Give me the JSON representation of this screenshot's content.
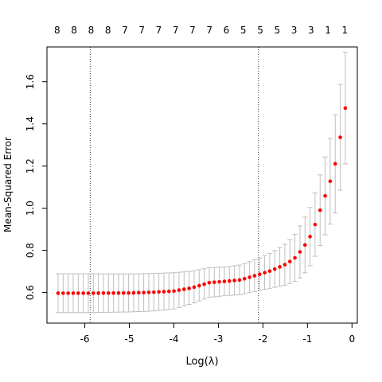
{
  "chart_data": {
    "type": "scatter",
    "xlabel": "Log(λ)",
    "ylabel": "Mean-Squared Error",
    "xlim": [
      -6.85,
      0.12
    ],
    "ylim": [
      0.455,
      1.765
    ],
    "xticks": [
      -6,
      -5,
      -4,
      -3,
      -2,
      -1,
      0
    ],
    "yticks": [
      0.6,
      0.8,
      1.0,
      1.2,
      1.4,
      1.6
    ],
    "ytick_labels": [
      "0.6",
      "0.8",
      "1.0",
      "1.2",
      "1.4",
      "1.6"
    ],
    "top_axis_labels": [
      {
        "x": -6.62,
        "label": "8"
      },
      {
        "x": -6.24,
        "label": "8"
      },
      {
        "x": -5.86,
        "label": "8"
      },
      {
        "x": -5.48,
        "label": "8"
      },
      {
        "x": -5.1,
        "label": "7"
      },
      {
        "x": -4.72,
        "label": "7"
      },
      {
        "x": -4.34,
        "label": "7"
      },
      {
        "x": -3.96,
        "label": "7"
      },
      {
        "x": -3.58,
        "label": "7"
      },
      {
        "x": -3.2,
        "label": "7"
      },
      {
        "x": -2.82,
        "label": "6"
      },
      {
        "x": -2.44,
        "label": "5"
      },
      {
        "x": -2.06,
        "label": "5"
      },
      {
        "x": -1.68,
        "label": "5"
      },
      {
        "x": -1.3,
        "label": "3"
      },
      {
        "x": -0.92,
        "label": "3"
      },
      {
        "x": -0.54,
        "label": "1"
      },
      {
        "x": -0.16,
        "label": "1"
      }
    ],
    "vlines": [
      -5.88,
      -2.1
    ],
    "n_points": 58,
    "x_start": -6.6,
    "x_end": -0.15,
    "points": [
      [
        -6.6,
        0.597,
        0.505,
        0.689
      ],
      [
        -5.88,
        0.597,
        0.505,
        0.689
      ],
      [
        -5.0,
        0.598,
        0.508,
        0.688
      ],
      [
        -4.5,
        0.601,
        0.512,
        0.69
      ],
      [
        -4.0,
        0.607,
        0.522,
        0.694
      ],
      [
        -3.6,
        0.622,
        0.547,
        0.701
      ],
      [
        -3.2,
        0.647,
        0.578,
        0.718
      ],
      [
        -2.8,
        0.654,
        0.586,
        0.722
      ],
      [
        -2.5,
        0.66,
        0.59,
        0.731
      ],
      [
        -2.1,
        0.685,
        0.609,
        0.762
      ],
      [
        -1.8,
        0.705,
        0.622,
        0.79
      ],
      [
        -1.5,
        0.733,
        0.635,
        0.83
      ],
      [
        -1.3,
        0.76,
        0.65,
        0.87
      ],
      [
        -1.1,
        0.81,
        0.68,
        0.94
      ],
      [
        -0.9,
        0.88,
        0.74,
        1.02
      ],
      [
        -0.7,
        1.0,
        0.83,
        1.17
      ],
      [
        -0.5,
        1.12,
        0.92,
        1.32
      ],
      [
        -0.35,
        1.23,
        0.99,
        1.47
      ],
      [
        -0.15,
        1.475,
        1.21,
        1.74
      ]
    ],
    "colors": {
      "point": "#ff0000",
      "errorbar": "#bebebe",
      "axis": "#000000"
    }
  }
}
